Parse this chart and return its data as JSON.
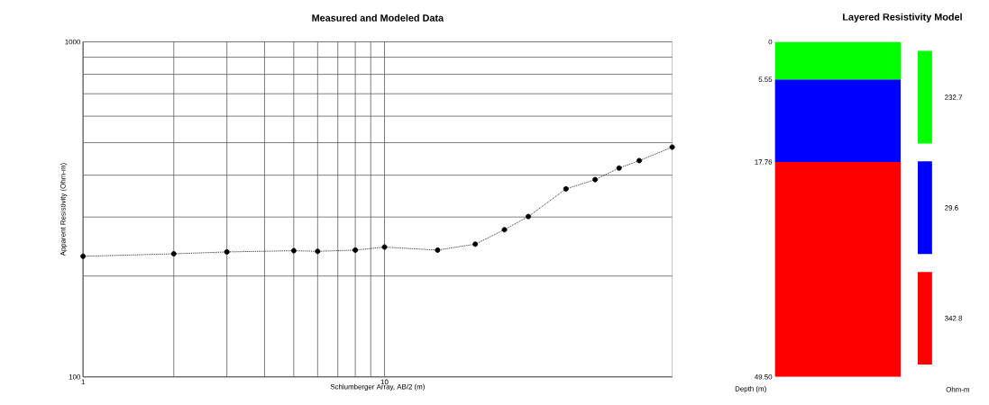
{
  "chart_data": [
    {
      "type": "line",
      "title": "Measured and Modeled Data",
      "xlabel": "Schlumberger Array, AB/2 (m)",
      "ylabel": "Apparent Resistivity (Ohm-m)",
      "log": "xy",
      "grid": true,
      "marker": "circle",
      "line_style": "dotted",
      "x": [
        1,
        2,
        3,
        5,
        6,
        8,
        10,
        15,
        20,
        25,
        30,
        40,
        50,
        60,
        70,
        90
      ],
      "series": [
        {
          "color": "#000000",
          "values": [
            229,
            233,
            236,
            238,
            237,
            239,
            244,
            239,
            249,
            275,
            301,
            364,
            388,
            420,
            442,
            485
          ]
        }
      ],
      "xlim": [
        1,
        90
      ],
      "ylim": [
        100,
        1000
      ],
      "xticks": [
        1,
        10
      ],
      "yticks": [
        100,
        1000
      ]
    },
    {
      "type": "bar",
      "title": "Layered Resistivity Model",
      "ylabel": "Depth (m)",
      "stacked": true,
      "categories": [
        null
      ],
      "series": [
        {
          "name": "232.7",
          "color": "#00ff00",
          "values": [
            5.55
          ]
        },
        {
          "name": "29.6",
          "color": "#0000ff",
          "values": [
            12.21
          ]
        },
        {
          "name": "342.8",
          "color": "#ff0000",
          "values": [
            31.74
          ]
        }
      ],
      "ylim": [
        49.5,
        0
      ],
      "yticks": [
        0,
        5.55,
        17.76,
        {
          "value": 49.5,
          "label": "49.50"
        }
      ],
      "legend": "right",
      "legend_title": "Ohm-m"
    }
  ]
}
